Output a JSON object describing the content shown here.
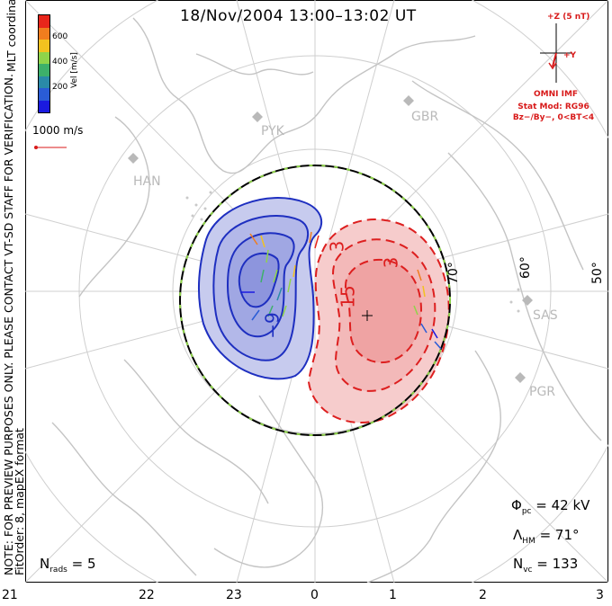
{
  "title": "18/Nov/2004 13:00–13:02 UT",
  "coordinates_label": "MLT coordinates",
  "preview_note_1": "NOTE: FOR PREVIEW PURPOSES ONLY. PLEASE CONTACT VT-SD STAFF FOR VERIFICATION.",
  "preview_note_2": "FitOrder: 8, mapEX format",
  "colorbar": {
    "label": "Vel [m/s]",
    "ticks": [
      "600",
      "400",
      "200"
    ],
    "colors": [
      "#e8261b",
      "#f07d1e",
      "#f2c21f",
      "#8fd44a",
      "#3db06a",
      "#2a8aa8",
      "#2a5cd6",
      "#1a1ae0"
    ]
  },
  "scale": {
    "label": "1000 m/s"
  },
  "imf": {
    "z_label": "+Z (5 nT)",
    "y_label": "+Y",
    "source": "OMNI IMF"
  },
  "stat_model": {
    "line1": "Stat Mod: RG96",
    "line2": "Bz−/By−, 0<BT<4"
  },
  "stats": {
    "phi_pc_sym": "Φ",
    "phi_pc_sub": "pc",
    "phi_pc_val": "= 42 kV",
    "lambda_sym": "Λ",
    "lambda_sub": "HM",
    "lambda_val": "= 71°",
    "nvc_sym": "N",
    "nvc_sub": "vc",
    "nvc_val": "= 133",
    "nrads_sym": "N",
    "nrads_sub": "rads",
    "nrads_val": "= 5"
  },
  "contours": {
    "neg_label": "−9",
    "pos_label_1": "3",
    "pos_label_2": "3",
    "pos_label_3": "15"
  },
  "latitudes": [
    "70°",
    "60°",
    "50°"
  ],
  "stations": [
    "HAN",
    "PYK",
    "GBR",
    "SAS",
    "PGR"
  ],
  "mlt_ticks": [
    "21",
    "22",
    "23",
    "0",
    "1",
    "2",
    "3"
  ],
  "colors": {
    "negative": "#1e2fc0",
    "positive": "#dd1f1f",
    "land": "#c9c9c9",
    "grid": "#c9c9c9",
    "boundary_dash": "#8fd44a"
  }
}
